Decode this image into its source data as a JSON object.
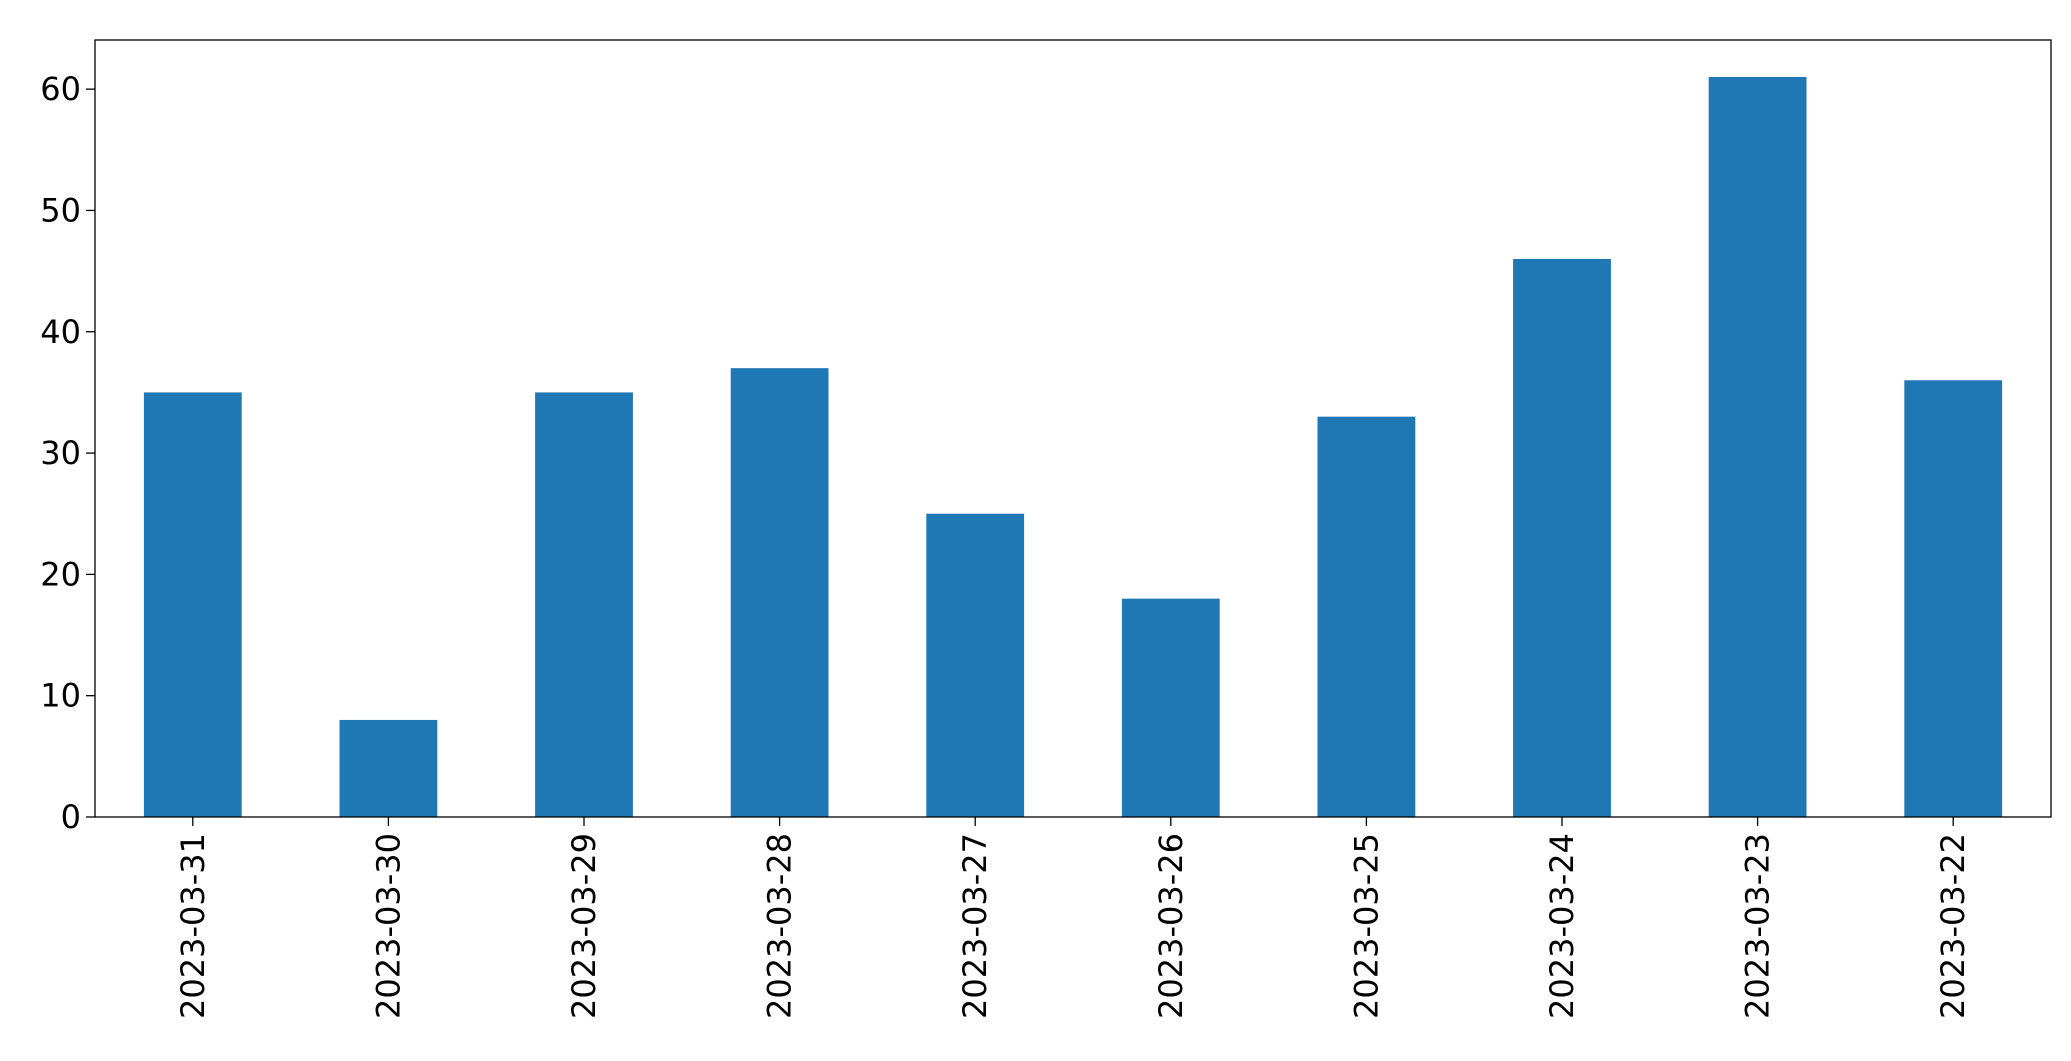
{
  "chart_data": {
    "type": "bar",
    "categories": [
      "2023-03-31",
      "2023-03-30",
      "2023-03-29",
      "2023-03-28",
      "2023-03-27",
      "2023-03-26",
      "2023-03-25",
      "2023-03-24",
      "2023-03-23",
      "2023-03-22"
    ],
    "values": [
      35,
      8,
      35,
      37,
      25,
      18,
      33,
      46,
      61,
      36
    ],
    "color": "#1f77b4",
    "ylim": [
      0,
      64.05
    ],
    "yticks": [
      0,
      10,
      20,
      30,
      40,
      50,
      60
    ],
    "grid": false
  }
}
